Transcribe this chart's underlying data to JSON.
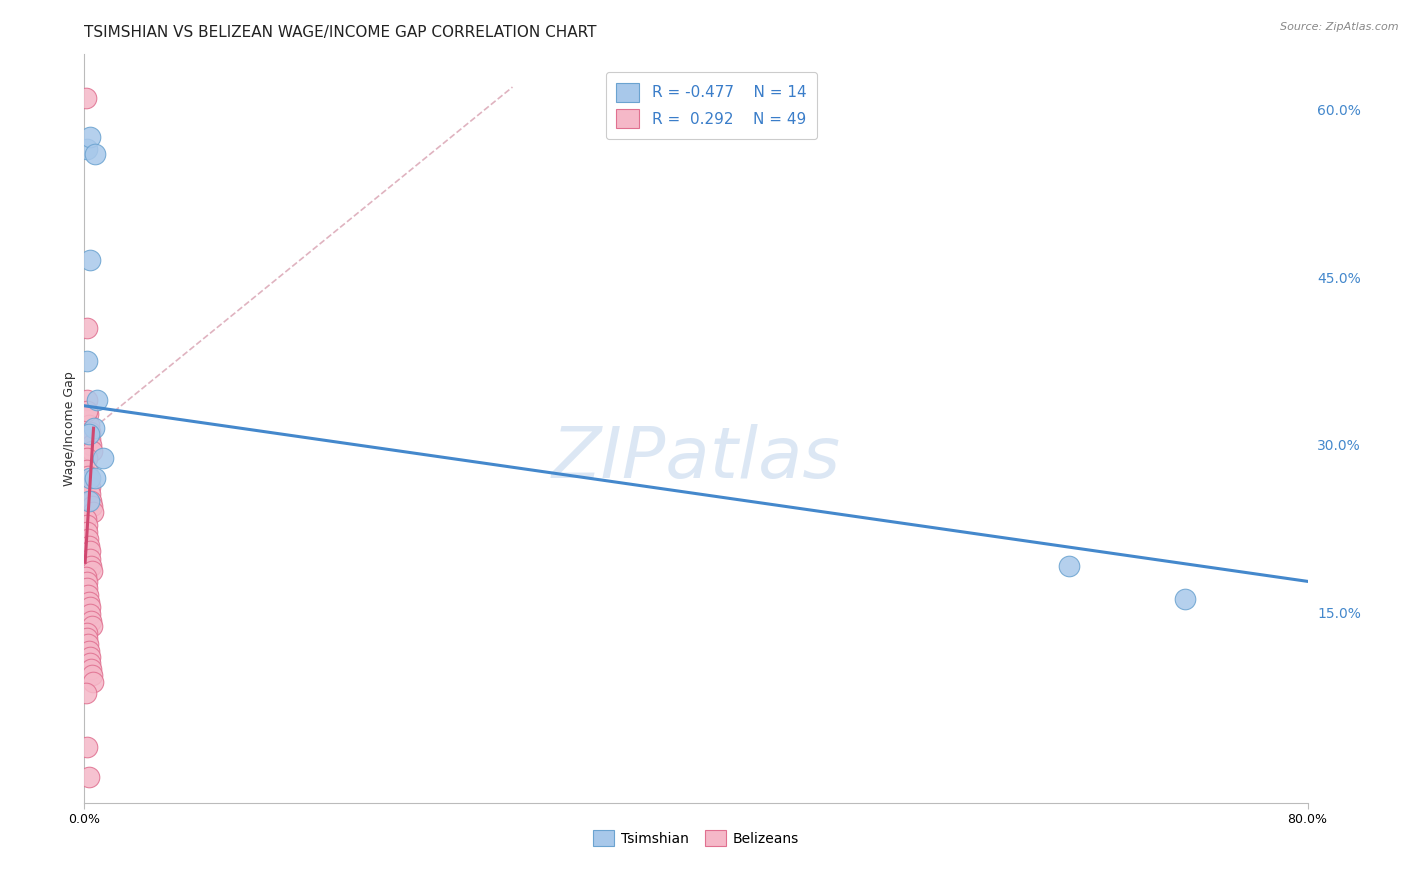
{
  "title": "TSIMSHIAN VS BELIZEAN WAGE/INCOME GAP CORRELATION CHART",
  "source": "Source: ZipAtlas.com",
  "ylabel": "Wage/Income Gap",
  "xlim": [
    0.0,
    0.8
  ],
  "ylim": [
    -0.02,
    0.65
  ],
  "y_ticks_right": [
    0.15,
    0.3,
    0.45,
    0.6
  ],
  "y_tick_labels_right": [
    "15.0%",
    "30.0%",
    "45.0%",
    "60.0%"
  ],
  "tsimshian_color": "#A8C8EA",
  "tsimshian_edge": "#6BA3D0",
  "belizean_color": "#F5B8C8",
  "belizean_edge": "#E07090",
  "blue_line_color": "#4488CC",
  "pink_line_color": "#D04870",
  "dash_line_color": "#D8A0B0",
  "watermark": "ZIPatlas",
  "watermark_color": "#C5D8EE",
  "watermark_alpha": 0.6,
  "watermark_fontsize": 52,
  "grid_color": "#CCCCCC",
  "background_color": "#FFFFFF",
  "title_fontsize": 11,
  "axis_fontsize": 9,
  "tsimshian_x": [
    0.0015,
    0.004,
    0.007,
    0.004,
    0.002,
    0.008,
    0.006,
    0.003,
    0.012,
    0.004,
    0.644,
    0.72,
    0.007,
    0.003
  ],
  "tsimshian_y": [
    0.565,
    0.575,
    0.56,
    0.465,
    0.375,
    0.34,
    0.315,
    0.31,
    0.288,
    0.27,
    0.192,
    0.162,
    0.27,
    0.25
  ],
  "belizean_x": [
    0.001,
    0.0015,
    0.002,
    0.0025,
    0.003,
    0.0035,
    0.004,
    0.0045,
    0.005,
    0.0015,
    0.002,
    0.0025,
    0.003,
    0.0035,
    0.004,
    0.0045,
    0.005,
    0.0055,
    0.001,
    0.0015,
    0.002,
    0.0025,
    0.003,
    0.0035,
    0.004,
    0.0045,
    0.005,
    0.001,
    0.0015,
    0.002,
    0.0025,
    0.003,
    0.0035,
    0.004,
    0.0045,
    0.005,
    0.0015,
    0.002,
    0.0025,
    0.003,
    0.0035,
    0.004,
    0.0045,
    0.005,
    0.0055,
    0.001,
    0.002,
    0.003,
    0.002
  ],
  "belizean_y": [
    0.61,
    0.405,
    0.34,
    0.328,
    0.318,
    0.312,
    0.305,
    0.3,
    0.295,
    0.288,
    0.278,
    0.272,
    0.268,
    0.262,
    0.256,
    0.25,
    0.245,
    0.24,
    0.234,
    0.228,
    0.222,
    0.216,
    0.21,
    0.205,
    0.198,
    0.192,
    0.187,
    0.182,
    0.177,
    0.172,
    0.166,
    0.16,
    0.155,
    0.149,
    0.143,
    0.138,
    0.132,
    0.127,
    0.122,
    0.116,
    0.11,
    0.105,
    0.1,
    0.094,
    0.088,
    0.078,
    0.03,
    0.003,
    0.33
  ],
  "blue_line_x": [
    0.0,
    0.8
  ],
  "blue_line_y": [
    0.335,
    0.178
  ],
  "pink_line_x": [
    0.0005,
    0.006
  ],
  "pink_line_y": [
    0.195,
    0.315
  ],
  "dash_line_x": [
    0.006,
    0.28
  ],
  "dash_line_y": [
    0.315,
    0.62
  ]
}
